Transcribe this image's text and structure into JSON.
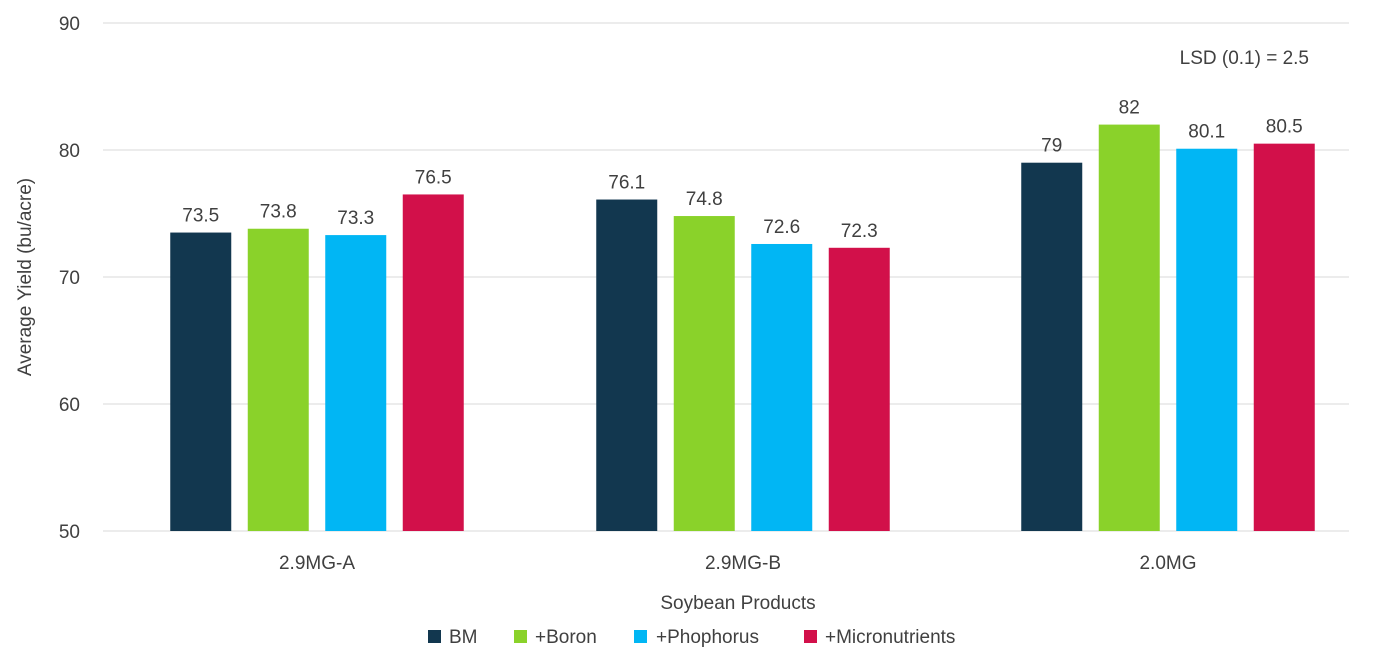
{
  "chart_data": {
    "type": "bar",
    "categories": [
      "2.9MG-A",
      "2.9MG-B",
      "2.0MG"
    ],
    "series": [
      {
        "name": "BM",
        "values": [
          73.5,
          76.1,
          79
        ],
        "color": "#12374f"
      },
      {
        "name": "+Boron",
        "values": [
          73.8,
          74.8,
          82
        ],
        "color": "#8ad22a"
      },
      {
        "name": "+Phophorus",
        "values": [
          73.3,
          72.6,
          80.1
        ],
        "color": "#01b6f4"
      },
      {
        "name": "+Micronutrients",
        "values": [
          76.5,
          72.3,
          80.5
        ],
        "color": "#d2104a"
      }
    ],
    "xlabel": "Soybean Products",
    "ylabel": "Average Yield (bu/acre)",
    "ylim": [
      50,
      90
    ],
    "yticks": [
      50,
      60,
      70,
      80,
      90
    ],
    "grid": true,
    "legend": "bottom",
    "annotation": "LSD (0.1) = 2.5"
  }
}
